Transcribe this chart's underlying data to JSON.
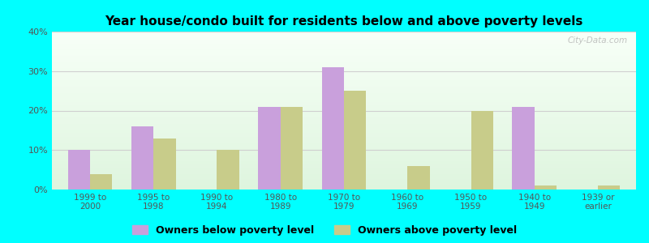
{
  "title": "Year house/condo built for residents below and above poverty levels",
  "categories": [
    "1999 to\n2000",
    "1995 to\n1998",
    "1990 to\n1994",
    "1980 to\n1989",
    "1970 to\n1979",
    "1960 to\n1969",
    "1950 to\n1959",
    "1940 to\n1949",
    "1939 or\nearlier"
  ],
  "below_poverty": [
    10,
    16,
    0,
    21,
    31,
    0,
    0,
    21,
    0
  ],
  "above_poverty": [
    4,
    13,
    10,
    21,
    25,
    6,
    20,
    1,
    1
  ],
  "below_color": "#c9a0dc",
  "above_color": "#c8cc8a",
  "ylim": [
    0,
    40
  ],
  "yticks": [
    0,
    10,
    20,
    30,
    40
  ],
  "ytick_labels": [
    "0%",
    "10%",
    "20%",
    "30%",
    "40%"
  ],
  "outer_bg_color": "#00ffff",
  "grid_color": "#d0d0d0",
  "legend_below": "Owners below poverty level",
  "legend_above": "Owners above poverty level",
  "watermark": "City-Data.com"
}
